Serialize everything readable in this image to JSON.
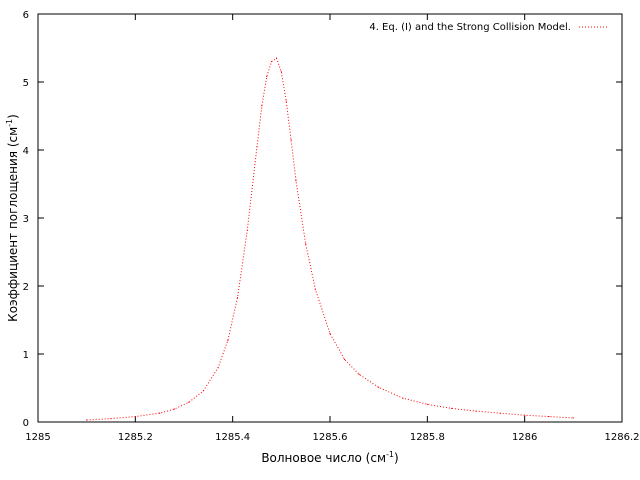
{
  "chart_data": {
    "type": "line",
    "xlabel": "Волновое число (см",
    "xlabel_sup": "-1",
    "xlabel_end": ")",
    "ylabel": "Коэффициент поглощения (см",
    "ylabel_sup": "-1",
    "ylabel_end": ")",
    "xlim": [
      1285,
      1286.2
    ],
    "ylim": [
      0,
      6
    ],
    "xticks": [
      1285,
      1285.2,
      1285.4,
      1285.6,
      1285.8,
      1286,
      1286.2
    ],
    "xtick_labels": [
      "1285",
      "1285.2",
      "1285.4",
      "1285.6",
      "1285.8",
      "1286",
      "1286.2"
    ],
    "yticks": [
      0,
      1,
      2,
      3,
      4,
      5,
      6
    ],
    "ytick_labels": [
      "0",
      "1",
      "2",
      "3",
      "4",
      "5",
      "6"
    ],
    "grid": false,
    "legend_position": "top-right",
    "series": [
      {
        "name": "4. Eq. (I) and the Strong Collision Model.",
        "color": "#ff0000",
        "style": "dotted",
        "x": [
          1285.1,
          1285.15,
          1285.2,
          1285.25,
          1285.28,
          1285.31,
          1285.34,
          1285.37,
          1285.39,
          1285.41,
          1285.43,
          1285.45,
          1285.46,
          1285.47,
          1285.48,
          1285.49,
          1285.5,
          1285.51,
          1285.52,
          1285.53,
          1285.55,
          1285.57,
          1285.6,
          1285.63,
          1285.66,
          1285.7,
          1285.75,
          1285.8,
          1285.85,
          1285.9,
          1285.95,
          1286.0,
          1286.05,
          1286.1
        ],
        "y": [
          0.03,
          0.05,
          0.08,
          0.13,
          0.19,
          0.29,
          0.46,
          0.8,
          1.2,
          1.83,
          2.82,
          4.05,
          4.65,
          5.08,
          5.3,
          5.35,
          5.15,
          4.72,
          4.15,
          3.55,
          2.62,
          1.95,
          1.3,
          0.92,
          0.7,
          0.51,
          0.35,
          0.26,
          0.2,
          0.16,
          0.13,
          0.1,
          0.08,
          0.06
        ]
      }
    ]
  }
}
